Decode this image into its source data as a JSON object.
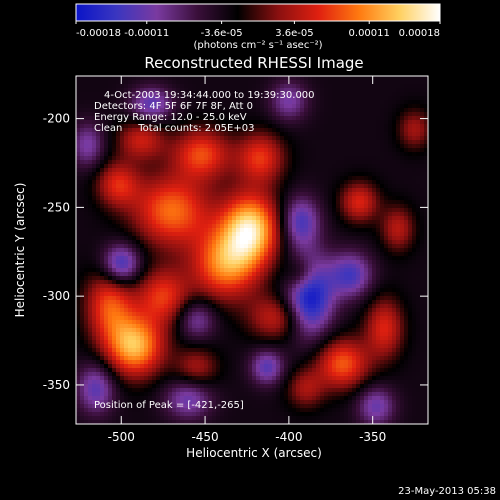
{
  "chart_data": {
    "type": "heatmap",
    "title": "Reconstructed RHESSI Image",
    "xlabel": "Heliocentric X (arcsec)",
    "ylabel": "Heliocentric Y (arcsec)",
    "xlim": [
      -527,
      -317
    ],
    "ylim": [
      -372,
      -176
    ],
    "x_ticks": [
      -500,
      -450,
      -400,
      -350
    ],
    "x_tick_labels": [
      "-500",
      "-450",
      "-400",
      "-350"
    ],
    "y_ticks": [
      -200,
      -250,
      -300,
      -350
    ],
    "y_tick_labels": [
      "-200",
      "-250",
      "-300",
      "-350"
    ],
    "colorbar": {
      "range": [
        -0.00018,
        0.00018
      ],
      "ticks": [
        -0.00018,
        -0.00011,
        -3.6e-05,
        3.6e-05,
        0.00011,
        0.00018
      ],
      "tick_labels": [
        "-0.00018",
        "-0.00011",
        "-3.6e-05",
        "3.6e-05",
        "0.00011",
        "0.00018"
      ],
      "unit_label": "(photons cm⁻² s⁻¹ asec⁻²)"
    },
    "colormap_stops": [
      "#0a14c8",
      "#3a36c0",
      "#7a3aa0",
      "#3a0f3a",
      "#000000",
      "#8a1010",
      "#e02010",
      "#ff7a10",
      "#ffd060",
      "#ffffff"
    ],
    "peak": {
      "x": -421,
      "y": -265,
      "value": 0.00018
    },
    "blobs": [
      {
        "x": -423,
        "y": -262,
        "sx": 12,
        "sy": 14,
        "a": 1.0
      },
      {
        "x": -438,
        "y": -282,
        "sx": 14,
        "sy": 14,
        "a": 0.75
      },
      {
        "x": -470,
        "y": -252,
        "sx": 16,
        "sy": 14,
        "a": 0.7
      },
      {
        "x": -492,
        "y": -328,
        "sx": 12,
        "sy": 12,
        "a": 0.9
      },
      {
        "x": -507,
        "y": -305,
        "sx": 10,
        "sy": 14,
        "a": 0.6
      },
      {
        "x": -475,
        "y": -300,
        "sx": 11,
        "sy": 11,
        "a": 0.55
      },
      {
        "x": -452,
        "y": -220,
        "sx": 12,
        "sy": 10,
        "a": 0.6
      },
      {
        "x": -417,
        "y": -222,
        "sx": 10,
        "sy": 10,
        "a": 0.55
      },
      {
        "x": -488,
        "y": -212,
        "sx": 10,
        "sy": 8,
        "a": 0.45
      },
      {
        "x": -502,
        "y": -237,
        "sx": 9,
        "sy": 9,
        "a": 0.5
      },
      {
        "x": -368,
        "y": -338,
        "sx": 11,
        "sy": 10,
        "a": 0.65
      },
      {
        "x": -343,
        "y": -318,
        "sx": 8,
        "sy": 12,
        "a": 0.5
      },
      {
        "x": -358,
        "y": -247,
        "sx": 8,
        "sy": 8,
        "a": 0.5
      },
      {
        "x": -335,
        "y": -262,
        "sx": 7,
        "sy": 9,
        "a": 0.4
      },
      {
        "x": -407,
        "y": -312,
        "sx": 12,
        "sy": 9,
        "a": 0.45
      },
      {
        "x": -390,
        "y": -352,
        "sx": 8,
        "sy": 8,
        "a": 0.35
      },
      {
        "x": -455,
        "y": -340,
        "sx": 9,
        "sy": 8,
        "a": 0.35
      },
      {
        "x": -393,
        "y": -288,
        "sx": 7,
        "sy": 7,
        "a": 0.4
      },
      {
        "x": -325,
        "y": -206,
        "sx": 7,
        "sy": 8,
        "a": 0.35
      },
      {
        "x": -500,
        "y": -282,
        "sx": 8,
        "sy": 8,
        "a": -0.65
      },
      {
        "x": -515,
        "y": -352,
        "sx": 8,
        "sy": 10,
        "a": -0.5
      },
      {
        "x": -388,
        "y": -300,
        "sx": 10,
        "sy": 16,
        "a": -0.85
      },
      {
        "x": -393,
        "y": -258,
        "sx": 8,
        "sy": 10,
        "a": -0.55
      },
      {
        "x": -460,
        "y": -358,
        "sx": 10,
        "sy": 8,
        "a": -0.45
      },
      {
        "x": -413,
        "y": -340,
        "sx": 7,
        "sy": 7,
        "a": -0.5
      },
      {
        "x": -455,
        "y": -313,
        "sx": 8,
        "sy": 8,
        "a": -0.4
      },
      {
        "x": -363,
        "y": -288,
        "sx": 9,
        "sy": 9,
        "a": -0.55
      },
      {
        "x": -348,
        "y": -362,
        "sx": 8,
        "sy": 8,
        "a": -0.45
      },
      {
        "x": -482,
        "y": -192,
        "sx": 9,
        "sy": 7,
        "a": -0.5
      },
      {
        "x": -400,
        "y": -190,
        "sx": 8,
        "sy": 8,
        "a": -0.4
      },
      {
        "x": -520,
        "y": -215,
        "sx": 7,
        "sy": 9,
        "a": -0.4
      }
    ],
    "background_level": -0.18
  },
  "annotations": {
    "time_range": "4-Oct-2003 19:34:44.000 to 19:39:30.000",
    "detectors": "Detectors: 4F 5F 6F 7F 8F, Att 0",
    "energy": "Energy Range: 12.0 - 25.0 keV",
    "clean": "Clean     Total counts: 2.05E+03",
    "peak": "Position of Peak = [-421,-265]",
    "timestamp": "23-May-2013 05:38"
  }
}
